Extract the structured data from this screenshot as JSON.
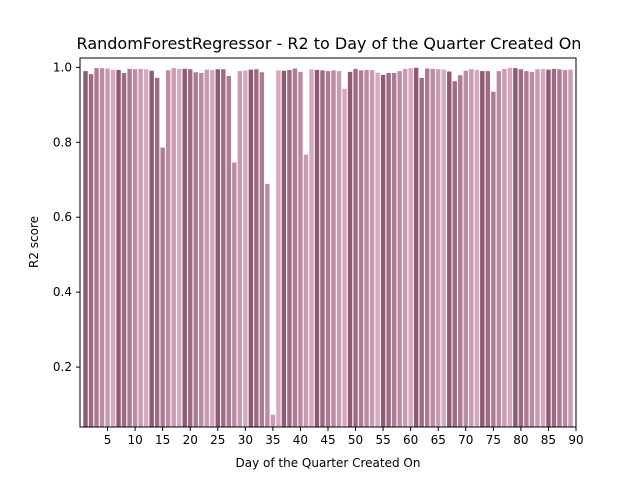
{
  "chart_data": {
    "type": "bar",
    "title": "RandomForestRegressor - R2 to Day of the Quarter Created On",
    "xlabel": "Day of the Quarter Created On",
    "ylabel": "R2 score",
    "x": [
      1,
      2,
      3,
      4,
      5,
      6,
      7,
      8,
      9,
      10,
      11,
      12,
      13,
      14,
      15,
      16,
      17,
      18,
      19,
      20,
      21,
      22,
      23,
      24,
      25,
      26,
      27,
      28,
      29,
      30,
      31,
      32,
      33,
      34,
      35,
      36,
      37,
      38,
      39,
      40,
      41,
      42,
      43,
      44,
      45,
      46,
      47,
      48,
      49,
      50,
      51,
      52,
      53,
      54,
      55,
      56,
      57,
      58,
      59,
      60,
      61,
      62,
      63,
      64,
      65,
      66,
      67,
      68,
      69,
      70,
      71,
      72,
      73,
      74,
      75,
      76,
      77,
      78,
      79,
      80,
      81,
      82,
      83,
      84,
      85,
      86,
      87,
      88,
      89
    ],
    "values": [
      0.99,
      0.982,
      0.998,
      0.998,
      0.997,
      0.994,
      0.993,
      0.985,
      0.996,
      0.995,
      0.996,
      0.995,
      0.991,
      0.972,
      0.786,
      0.992,
      0.998,
      0.996,
      0.996,
      0.995,
      0.987,
      0.985,
      0.994,
      0.993,
      0.995,
      0.995,
      0.977,
      0.746,
      0.99,
      0.992,
      0.994,
      0.995,
      0.987,
      0.689,
      0.073,
      0.992,
      0.991,
      0.993,
      0.997,
      0.988,
      0.767,
      0.995,
      0.993,
      0.992,
      0.99,
      0.992,
      0.99,
      0.943,
      0.988,
      0.996,
      0.992,
      0.993,
      0.993,
      0.986,
      0.98,
      0.985,
      0.985,
      0.99,
      0.996,
      0.998,
      0.999,
      0.972,
      0.997,
      0.996,
      0.995,
      0.994,
      0.989,
      0.963,
      0.979,
      0.991,
      0.995,
      0.993,
      0.99,
      0.99,
      0.935,
      0.99,
      0.996,
      0.999,
      0.998,
      0.995,
      0.99,
      0.988,
      0.995,
      0.996,
      0.994,
      0.996,
      0.995,
      0.993,
      0.994
    ],
    "colors": [
      "#8f5a73",
      "#9e6b83",
      "#ad7b93",
      "#bc8ba2",
      "#c99bb0",
      "#d6a9bd"
    ],
    "xlim": [
      0,
      90
    ],
    "ylim": [
      0.04,
      1.025
    ],
    "xticks": [
      5,
      10,
      15,
      20,
      25,
      30,
      35,
      40,
      45,
      50,
      55,
      60,
      65,
      70,
      75,
      80,
      85,
      90
    ],
    "yticks": [
      0.2,
      0.4,
      0.6,
      0.8,
      1.0
    ],
    "ytick_labels": [
      "0.2",
      "0.4",
      "0.6",
      "0.8",
      "1.0"
    ],
    "grid": false,
    "legend": "none"
  }
}
